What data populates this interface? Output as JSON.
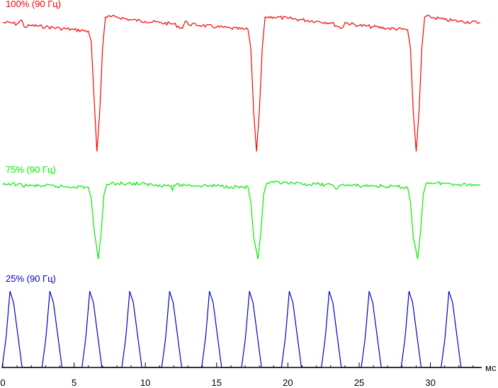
{
  "chart_data": {
    "type": "line",
    "x_unit": "мс",
    "xlim": [
      0,
      33.5
    ],
    "x_ticks": [
      0,
      5,
      10,
      15,
      20,
      25,
      30
    ],
    "series": [
      {
        "name": "100% (90 Гц)",
        "color": "#ff0000",
        "normalized_level": [
          0,
          1
        ],
        "points": [
          [
            0,
            0.93
          ],
          [
            0.5,
            0.93
          ],
          [
            1.0,
            0.92
          ],
          [
            1.3,
            0.95
          ],
          [
            1.5,
            0.9
          ],
          [
            2.0,
            0.91
          ],
          [
            3.0,
            0.9
          ],
          [
            4.0,
            0.89
          ],
          [
            5.0,
            0.88
          ],
          [
            6.0,
            0.87
          ],
          [
            6.2,
            0.8
          ],
          [
            6.4,
            0.4
          ],
          [
            6.6,
            0.02
          ],
          [
            6.8,
            0.3
          ],
          [
            7.0,
            0.75
          ],
          [
            7.2,
            0.97
          ],
          [
            8.0,
            0.97
          ],
          [
            9.0,
            0.95
          ],
          [
            10.0,
            0.94
          ],
          [
            11.0,
            0.93
          ],
          [
            12.0,
            0.92
          ],
          [
            12.6,
            0.89
          ],
          [
            12.8,
            0.94
          ],
          [
            13.0,
            0.92
          ],
          [
            14.0,
            0.91
          ],
          [
            15.0,
            0.9
          ],
          [
            16.0,
            0.89
          ],
          [
            17.2,
            0.88
          ],
          [
            17.4,
            0.75
          ],
          [
            17.6,
            0.3
          ],
          [
            17.8,
            0.02
          ],
          [
            18.0,
            0.3
          ],
          [
            18.2,
            0.75
          ],
          [
            18.4,
            0.97
          ],
          [
            19.0,
            0.97
          ],
          [
            20.0,
            0.96
          ],
          [
            21.0,
            0.95
          ],
          [
            22.0,
            0.94
          ],
          [
            23.0,
            0.93
          ],
          [
            23.8,
            0.89
          ],
          [
            24.0,
            0.93
          ],
          [
            25.0,
            0.91
          ],
          [
            26.0,
            0.9
          ],
          [
            27.0,
            0.89
          ],
          [
            28.4,
            0.88
          ],
          [
            28.6,
            0.75
          ],
          [
            28.8,
            0.3
          ],
          [
            29.0,
            0.02
          ],
          [
            29.2,
            0.3
          ],
          [
            29.4,
            0.75
          ],
          [
            29.6,
            0.97
          ],
          [
            30.0,
            0.97
          ],
          [
            31.0,
            0.95
          ],
          [
            32.0,
            0.94
          ],
          [
            33.5,
            0.93
          ]
        ]
      },
      {
        "name": "75% (90 Гц)",
        "color": "#00ee00",
        "normalized_level": [
          0,
          1
        ],
        "points": [
          [
            0,
            0.97
          ],
          [
            0.5,
            0.97
          ],
          [
            0.7,
            1.0
          ],
          [
            1.0,
            0.97
          ],
          [
            2.0,
            0.96
          ],
          [
            3.0,
            0.96
          ],
          [
            4.0,
            0.95
          ],
          [
            5.0,
            0.95
          ],
          [
            6.0,
            0.94
          ],
          [
            6.2,
            0.8
          ],
          [
            6.4,
            0.4
          ],
          [
            6.7,
            0.02
          ],
          [
            6.9,
            0.35
          ],
          [
            7.1,
            0.85
          ],
          [
            7.3,
            0.98
          ],
          [
            8.0,
            0.99
          ],
          [
            9.0,
            0.99
          ],
          [
            10.0,
            0.98
          ],
          [
            11.0,
            0.97
          ],
          [
            11.8,
            0.96
          ],
          [
            11.9,
            0.9
          ],
          [
            12.0,
            0.97
          ],
          [
            13.0,
            0.97
          ],
          [
            14.0,
            0.96
          ],
          [
            15.0,
            0.96
          ],
          [
            16.0,
            0.95
          ],
          [
            17.2,
            0.94
          ],
          [
            17.4,
            0.75
          ],
          [
            17.6,
            0.3
          ],
          [
            17.9,
            0.02
          ],
          [
            18.1,
            0.35
          ],
          [
            18.3,
            0.85
          ],
          [
            18.5,
            0.99
          ],
          [
            19.0,
            1.0
          ],
          [
            20.0,
            0.99
          ],
          [
            21.0,
            0.98
          ],
          [
            22.0,
            0.98
          ],
          [
            23.0,
            0.97
          ],
          [
            23.5,
            0.93
          ],
          [
            23.8,
            0.97
          ],
          [
            25.0,
            0.96
          ],
          [
            26.0,
            0.96
          ],
          [
            27.0,
            0.95
          ],
          [
            28.4,
            0.94
          ],
          [
            28.6,
            0.75
          ],
          [
            28.8,
            0.3
          ],
          [
            29.1,
            0.02
          ],
          [
            29.3,
            0.35
          ],
          [
            29.5,
            0.85
          ],
          [
            29.7,
            0.99
          ],
          [
            30.0,
            1.0
          ],
          [
            31.0,
            0.99
          ],
          [
            32.0,
            0.98
          ],
          [
            33.5,
            0.97
          ]
        ]
      },
      {
        "name": "25% (90 Гц)",
        "color": "#0000cc",
        "normalized_level": [
          0,
          1
        ],
        "peak_times": [
          0.5,
          3.3,
          6.1,
          8.9,
          11.7,
          14.5,
          17.3,
          20.1,
          22.9,
          25.7,
          28.5,
          31.3
        ],
        "peak_height": 0.97,
        "peak_rise_ms": 0.55,
        "peak_fall_ms": 0.85
      }
    ]
  }
}
